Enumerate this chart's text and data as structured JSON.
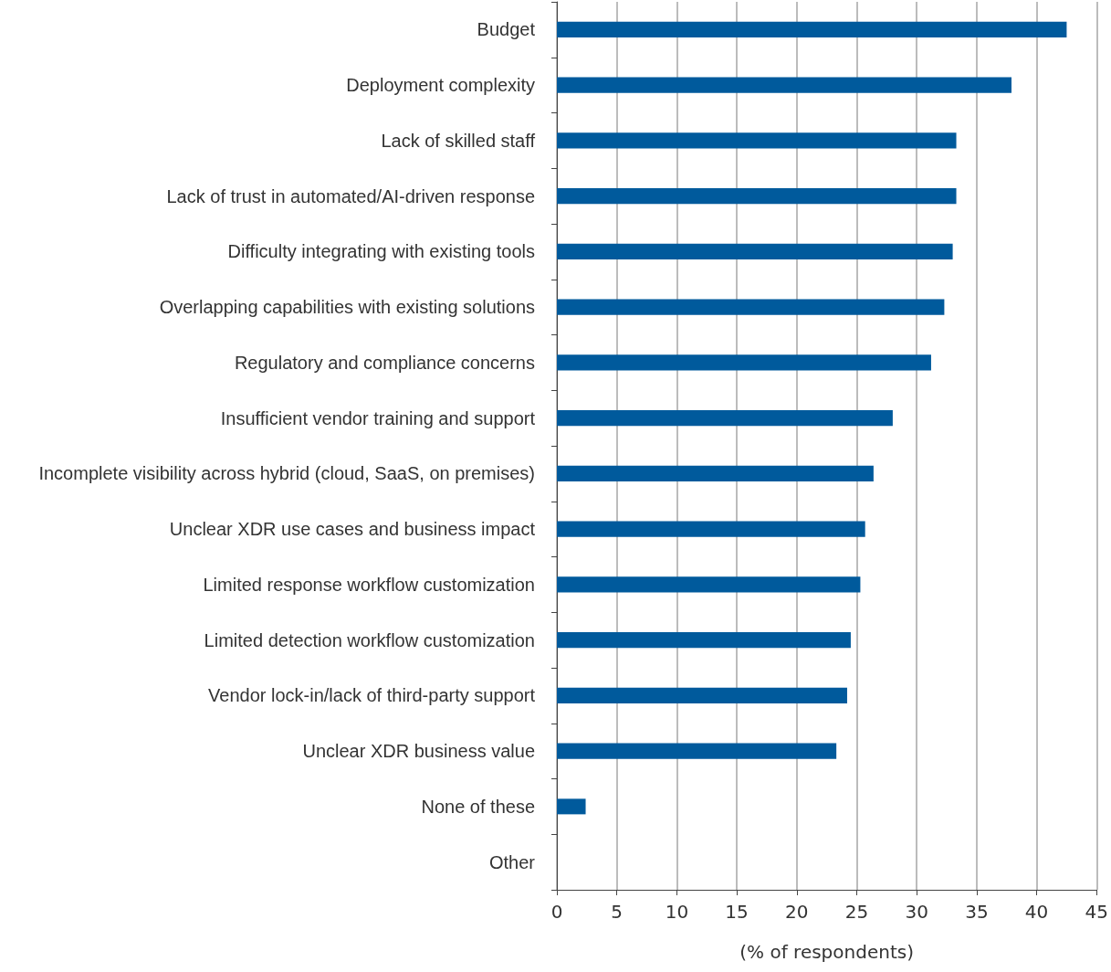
{
  "chart_data": {
    "type": "bar",
    "orientation": "horizontal",
    "xlabel": "(% of respondents)",
    "categories": [
      "Budget",
      "Deployment complexity",
      "Lack of skilled staff",
      "Lack of trust in automated/AI-driven response",
      "Difficulty integrating with existing tools",
      "Overlapping capabilities with existing solutions",
      "Regulatory and compliance concerns",
      "Insufficient vendor training and support",
      "Incomplete visibility across hybrid (cloud, SaaS, on premises)",
      "Unclear XDR use cases and business impact",
      "Limited response workflow customization",
      "Limited detection workflow customization",
      "Vendor lock-in/lack of third-party support",
      "Unclear XDR business value",
      "None of these",
      "Other"
    ],
    "values": [
      42.5,
      37.9,
      33.3,
      33.3,
      33.0,
      32.3,
      31.2,
      28.0,
      26.4,
      25.7,
      25.3,
      24.5,
      24.2,
      23.3,
      2.4,
      0
    ],
    "color": "#005a9c",
    "xlim": [
      0,
      45
    ],
    "xticks": [
      0,
      5,
      10,
      15,
      20,
      25,
      30,
      35,
      40,
      45
    ],
    "grid": "x"
  }
}
